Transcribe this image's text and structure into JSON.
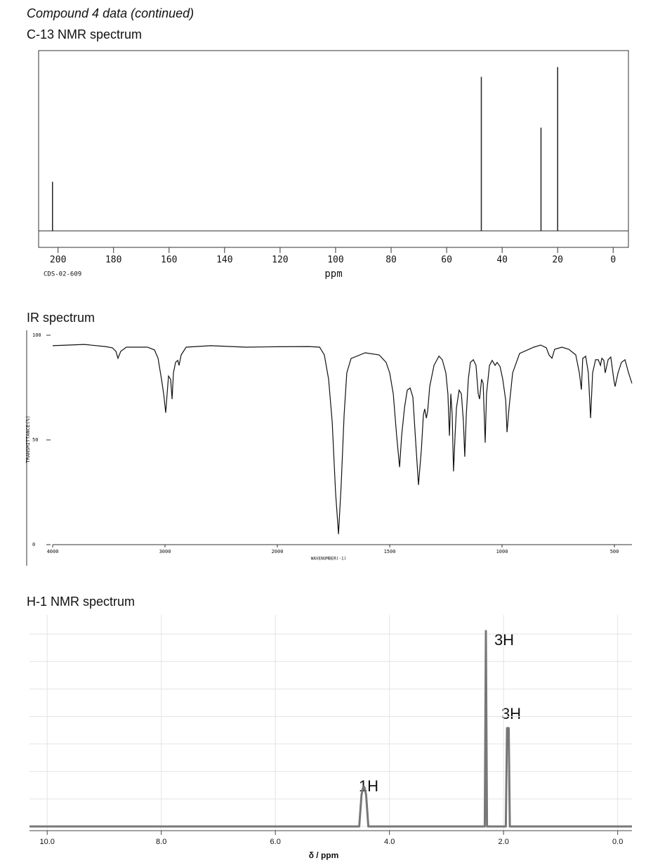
{
  "heading": "Compound 4 data (continued)",
  "chart_data": [
    {
      "type": "stem",
      "title": "C-13 NMR spectrum",
      "xlabel": "ppm",
      "annotation": "CDS-02-609",
      "x": [
        202,
        47.5,
        26,
        20
      ],
      "values": [
        30,
        94,
        63,
        100
      ],
      "color": "#222222",
      "xlim": [
        207,
        -5.5
      ],
      "ylim": [
        -10,
        110
      ],
      "xticks": [
        200,
        180,
        160,
        140,
        120,
        100,
        80,
        60,
        40,
        20,
        0
      ]
    },
    {
      "type": "line",
      "title": "IR spectrum",
      "xlabel": "WAVENUMBER(-1)",
      "ylabel": "TRANSMITTANCE(%)",
      "color": "#111111",
      "x_scale_break": 2000,
      "x": [
        4000,
        3719,
        3531,
        3469,
        3437,
        3419,
        3394,
        3344,
        3156,
        3094,
        3062,
        3031,
        3012,
        2994,
        2981,
        2969,
        2950,
        2937,
        2925,
        2906,
        2887,
        2875,
        2856,
        2812,
        2594,
        2281,
        2000,
        1859,
        1812,
        1791,
        1772,
        1756,
        1741,
        1728,
        1716,
        1703,
        1691,
        1672,
        1609,
        1547,
        1516,
        1500,
        1484,
        1469,
        1456,
        1447,
        1434,
        1422,
        1409,
        1397,
        1384,
        1372,
        1359,
        1350,
        1344,
        1337,
        1331,
        1322,
        1303,
        1281,
        1266,
        1250,
        1241,
        1234,
        1228,
        1222,
        1216,
        1209,
        1203,
        1191,
        1181,
        1172,
        1166,
        1159,
        1150,
        1141,
        1128,
        1116,
        1106,
        1100,
        1091,
        1084,
        1075,
        1069,
        1056,
        1044,
        1031,
        1022,
        1009,
        997,
        984,
        978,
        969,
        953,
        922,
        859,
        828,
        803,
        791,
        778,
        766,
        734,
        703,
        672,
        656,
        647,
        641,
        628,
        616,
        606,
        597,
        584,
        572,
        562,
        556,
        547,
        541,
        528,
        516,
        503,
        497,
        484,
        469,
        453,
        437,
        422
      ],
      "values": [
        95,
        95.6,
        94.6,
        94,
        92.3,
        89,
        92.3,
        94.3,
        94.3,
        93,
        89,
        79,
        72,
        63,
        72,
        80.5,
        79,
        69.5,
        82,
        87,
        88,
        85.6,
        90.6,
        94.3,
        95,
        94.3,
        94.5,
        94.6,
        94.3,
        90.6,
        79,
        58.7,
        25,
        5,
        28.5,
        62,
        82,
        88.9,
        91.6,
        90.6,
        87,
        82,
        72,
        52,
        37,
        52,
        65.4,
        73.8,
        74.8,
        70.5,
        48.7,
        28.5,
        45.3,
        62,
        64.8,
        60.4,
        63.8,
        75.5,
        85.6,
        90,
        88.3,
        82,
        72,
        52,
        72,
        62,
        35,
        52,
        65.4,
        73.8,
        72,
        58.7,
        42,
        62,
        79,
        87,
        88.3,
        85.6,
        72,
        69.5,
        79,
        77,
        48.7,
        72,
        85.6,
        88,
        85.6,
        87,
        85,
        79,
        69,
        53.7,
        65.4,
        82,
        91.3,
        94.3,
        95.3,
        94,
        90.6,
        89,
        93.3,
        94.3,
        93.3,
        90.6,
        82,
        74,
        88.9,
        90,
        82,
        60.4,
        82,
        88.3,
        88.3,
        85.6,
        89,
        88,
        82,
        88.3,
        89.6,
        79,
        75.5,
        82,
        87,
        88.3,
        82,
        77
      ],
      "xlim": [
        4000,
        422
      ],
      "ylim": [
        0,
        100
      ],
      "xticks": [
        4000,
        3000,
        2000,
        1500,
        1000,
        500
      ],
      "yticks": [
        0,
        50,
        100
      ]
    },
    {
      "type": "line",
      "title": "H-1 NMR spectrum",
      "xlabel": "δ / ppm",
      "color": "#777777",
      "grid": true,
      "annotations": [
        "1H",
        "3H",
        "3H"
      ],
      "x": [
        10.31,
        4.53,
        4.49,
        4.46,
        4.44,
        4.41,
        4.37,
        2.33,
        2.31,
        2.29,
        1.96,
        1.94,
        1.91,
        1.89,
        -0.25
      ],
      "values": [
        0,
        0,
        15,
        18.6,
        18.6,
        15,
        0,
        0,
        92.4,
        0,
        0,
        46.5,
        46.5,
        0,
        0
      ],
      "xlim": [
        10.31,
        -0.25
      ],
      "ylim": [
        -2,
        100
      ],
      "xticks": [
        {
          "value": 10,
          "label": "10.0"
        },
        {
          "value": 8,
          "label": "8.0"
        },
        {
          "value": 6,
          "label": "6.0"
        },
        {
          "value": 4,
          "label": "4.0"
        },
        {
          "value": 2,
          "label": "2.0"
        },
        {
          "value": 0,
          "label": "0.0"
        }
      ],
      "ygrid": [
        0,
        13,
        26,
        39,
        52,
        65,
        78,
        91
      ]
    }
  ]
}
